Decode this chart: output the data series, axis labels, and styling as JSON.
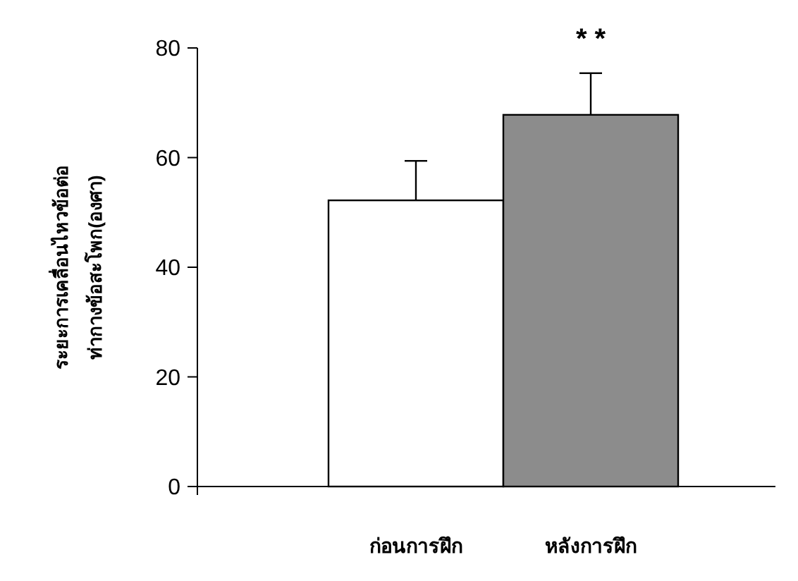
{
  "chart_data": {
    "type": "bar",
    "ylabel": "ระยะการเคลื่อนไหวข้อต่อ\nท่ากางข้อสะโพก(องศา)",
    "categories": [
      "ก่อนการฝึก",
      "หลังการฝึก"
    ],
    "values": [
      52.2,
      67.8
    ],
    "errors": [
      7.2,
      7.6
    ],
    "colors": [
      "#ffffff",
      "#8c8c8c"
    ],
    "ylim": [
      0,
      80
    ],
    "yticks": [
      0,
      20,
      40,
      60,
      80
    ],
    "annotations": [
      "* *"
    ]
  }
}
